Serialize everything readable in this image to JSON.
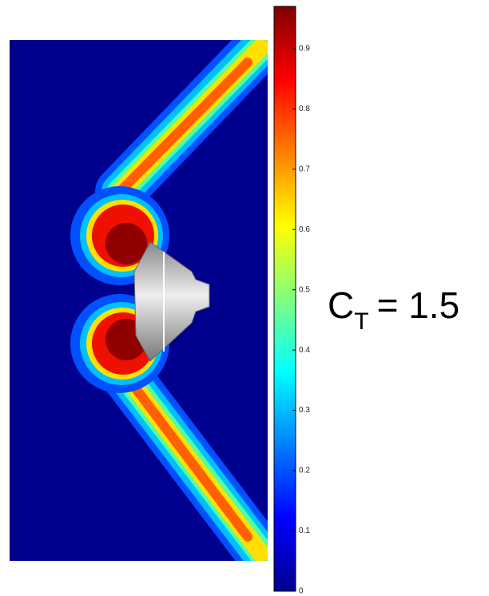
{
  "chart_data": {
    "type": "contour",
    "colormap": "jet",
    "zlim": [
      0,
      0.97
    ],
    "zticks": [
      0,
      0.1,
      0.2,
      0.3,
      0.4,
      0.5,
      0.6,
      0.7,
      0.8,
      0.9
    ],
    "annotation": {
      "symbol": "C",
      "subscript": "T",
      "text": "= 1.5"
    }
  }
}
